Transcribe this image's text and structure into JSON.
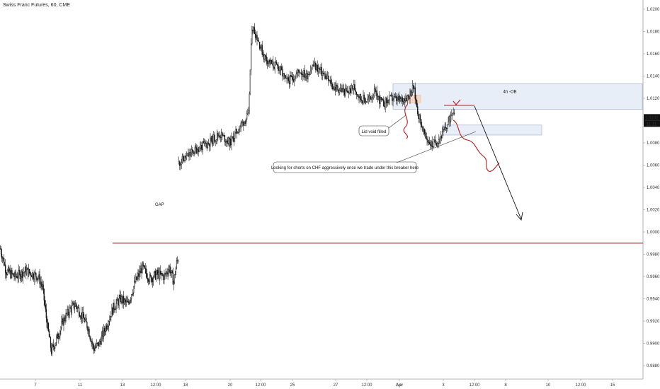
{
  "chart_data": {
    "type": "candlestick",
    "title": "Swiss Franc Futures, 60, CME",
    "y_ticks": [
      "1.0200",
      "1.0180",
      "1.0160",
      "1.0140",
      "1.0120",
      "1.0100",
      "1.0080",
      "1.0060",
      "1.0040",
      "1.0020",
      "1.0000",
      "0.9980",
      "0.9960",
      "0.9940",
      "0.9920",
      "0.9900",
      "0.9880"
    ],
    "ylim": [
      0.9873,
      1.0205
    ],
    "x_ticks": [
      "7",
      "11",
      "13",
      "12:00",
      "18",
      "20",
      "12:00",
      "25",
      "27",
      "12:00",
      "Apr",
      "3",
      "12:00",
      "8",
      "10",
      "12:00",
      "15"
    ],
    "last_price": "1.0102",
    "countdown": "11:11",
    "colors": {
      "candle": "#111111",
      "resistance": "#c62828",
      "zone_fill": "#e8eef8",
      "zone_stroke": "#9aa8c8",
      "projection": "#b71c1c",
      "small_box": "#f6d7c5",
      "price_tag": "#111111"
    },
    "segments": [
      {
        "start_price": 0.9985,
        "bars": 245,
        "vol": 0.0011,
        "waypoints": [
          [
            0,
            0.9985
          ],
          [
            8,
            0.9965
          ],
          [
            20,
            0.996
          ],
          [
            35,
            0.9965
          ],
          [
            52,
            0.996
          ],
          [
            58,
            0.995
          ],
          [
            64,
            0.9918
          ],
          [
            70,
            0.9893
          ],
          [
            78,
            0.9905
          ],
          [
            86,
            0.992
          ],
          [
            95,
            0.993
          ],
          [
            103,
            0.9935
          ],
          [
            112,
            0.9925
          ],
          [
            120,
            0.9915
          ],
          [
            128,
            0.9895
          ],
          [
            136,
            0.99
          ],
          [
            145,
            0.9915
          ],
          [
            155,
            0.9932
          ],
          [
            165,
            0.994
          ],
          [
            175,
            0.9935
          ],
          [
            185,
            0.9955
          ],
          [
            195,
            0.9968
          ],
          [
            205,
            0.9958
          ],
          [
            215,
            0.9962
          ],
          [
            225,
            0.996
          ],
          [
            232,
            0.9968
          ],
          [
            238,
            0.9955
          ],
          [
            242,
            0.9972
          ],
          [
            245,
            0.9978
          ]
        ]
      },
      {
        "start_price": 1.0062,
        "bars": 325,
        "vol": 0.001,
        "waypoints": [
          [
            0,
            1.0062
          ],
          [
            10,
            1.0068
          ],
          [
            22,
            1.0075
          ],
          [
            35,
            1.008
          ],
          [
            48,
            1.0088
          ],
          [
            60,
            1.008
          ],
          [
            72,
            1.0095
          ],
          [
            82,
            1.0105
          ],
          [
            86,
            1.0185
          ],
          [
            92,
            1.0175
          ],
          [
            100,
            1.0158
          ],
          [
            110,
            1.015
          ],
          [
            118,
            1.0148
          ],
          [
            126,
            1.0135
          ],
          [
            134,
            1.0138
          ],
          [
            142,
            1.0145
          ],
          [
            150,
            1.014
          ],
          [
            158,
            1.015
          ],
          [
            166,
            1.0145
          ],
          [
            174,
            1.0138
          ],
          [
            182,
            1.013
          ],
          [
            190,
            1.0128
          ],
          [
            198,
            1.0125
          ],
          [
            206,
            1.013
          ],
          [
            214,
            1.012
          ],
          [
            222,
            1.0118
          ],
          [
            230,
            1.0125
          ],
          [
            240,
            1.0115
          ],
          [
            250,
            1.012
          ],
          [
            260,
            1.0118
          ],
          [
            270,
            1.0122
          ],
          [
            276,
            1.013
          ],
          [
            282,
            1.0105
          ],
          [
            290,
            1.0085
          ],
          [
            298,
            1.0078
          ],
          [
            304,
            1.0082
          ],
          [
            312,
            1.009
          ],
          [
            318,
            1.01
          ],
          [
            322,
            1.011
          ],
          [
            325,
            1.0108
          ]
        ]
      }
    ],
    "annotations": {
      "gap_label": "GAP",
      "ob_label": "4h -OB",
      "lid_label": "Lid void filled",
      "shorts_label": "Looking for shorts on CHF aggressively once we trade under this breaker here",
      "resistance_level": 0.999
    }
  }
}
